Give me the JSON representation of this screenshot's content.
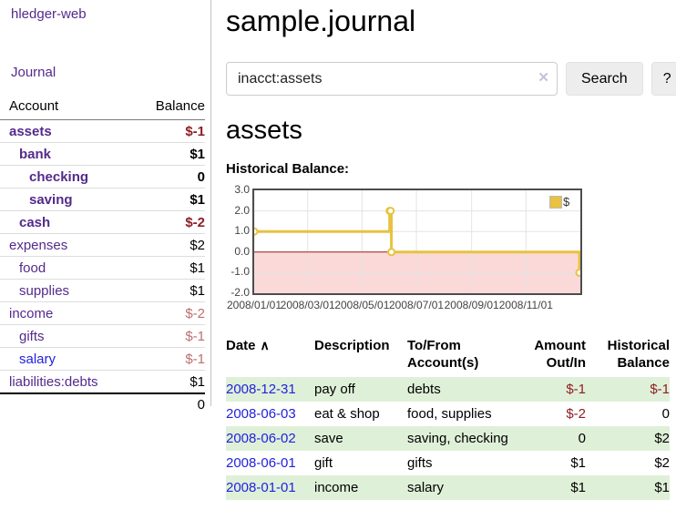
{
  "colors": {
    "link_purple": "#542a8c",
    "link_blue": "#2222dd",
    "negative_strong": "#8f1e24",
    "negative_soft": "#bd6f6f",
    "row_highlight_green": "#dff0d8",
    "chart_gold": "#e8c240",
    "chart_negative_fill": "#fbd9d9",
    "chart_zero_line": "#9b1c16"
  },
  "sidebar": {
    "brand": "hledger-web",
    "nav": {
      "journal": "Journal"
    },
    "accounts": {
      "header": {
        "account": "Account",
        "balance": "Balance"
      },
      "rows": [
        {
          "label": "assets",
          "indent": 0,
          "bold": true,
          "balance": "$-1"
        },
        {
          "label": "bank",
          "indent": 1,
          "bold": true,
          "balance": "$1"
        },
        {
          "label": "checking",
          "indent": 2,
          "bold": true,
          "balance": "0"
        },
        {
          "label": "saving",
          "indent": 2,
          "bold": true,
          "balance": "$1"
        },
        {
          "label": "cash",
          "indent": 1,
          "bold": true,
          "balance": "$-2"
        },
        {
          "label": "expenses",
          "indent": 0,
          "bold": false,
          "balance": "$2"
        },
        {
          "label": "food",
          "indent": 1,
          "bold": false,
          "balance": "$1"
        },
        {
          "label": "supplies",
          "indent": 1,
          "bold": false,
          "balance": "$1"
        },
        {
          "label": "income",
          "indent": 0,
          "bold": false,
          "balance": "$-2"
        },
        {
          "label": "gifts",
          "indent": 1,
          "bold": false,
          "balance": "$-1"
        },
        {
          "label": "salary",
          "indent": 1,
          "bold": false,
          "balance": "$-1",
          "link_color": "blue"
        },
        {
          "label": "liabilities:debts",
          "indent": 0,
          "bold": false,
          "balance": "$1"
        }
      ],
      "total": "0"
    }
  },
  "main": {
    "title": "sample.journal",
    "search": {
      "query": "inacct:assets",
      "clear_icon": "✕",
      "button": "Search",
      "help_button": "?"
    },
    "account_heading": "assets",
    "chart_label": "Historical Balance:",
    "register_table": {
      "sort_indicator": "∧",
      "headers": [
        "Date",
        "Description",
        "To/From Account(s)",
        "Amount Out/In",
        "Historical Balance"
      ],
      "rows": [
        {
          "date": "2008-12-31",
          "description": "pay off",
          "accounts": "debts",
          "amount": "$-1",
          "balance": "$-1"
        },
        {
          "date": "2008-06-03",
          "description": "eat & shop",
          "accounts": "food, supplies",
          "amount": "$-2",
          "balance": "0"
        },
        {
          "date": "2008-06-02",
          "description": "save",
          "accounts": "saving, checking",
          "amount": "0",
          "balance": "$2"
        },
        {
          "date": "2008-06-01",
          "description": "gift",
          "accounts": "gifts",
          "amount": "$1",
          "balance": "$2"
        },
        {
          "date": "2008-01-01",
          "description": "income",
          "accounts": "salary",
          "amount": "$1",
          "balance": "$1"
        }
      ]
    }
  },
  "chart_data": {
    "type": "line",
    "step": true,
    "title": "Historical Balance",
    "series": [
      {
        "name": "$",
        "color": "#e8c240",
        "points": [
          [
            "2008-01-01",
            1
          ],
          [
            "2008-06-01",
            2
          ],
          [
            "2008-06-02",
            2
          ],
          [
            "2008-06-03",
            0
          ],
          [
            "2008-12-31",
            -1
          ]
        ]
      }
    ],
    "ylim": [
      -2,
      3
    ],
    "y_ticks": [
      "3.0",
      "2.0",
      "1.0",
      "0.0",
      "-1.0",
      "-2.0"
    ],
    "x_ticks": [
      "2008/01/01",
      "2008/03/01",
      "2008/05/01",
      "2008/07/01",
      "2008/09/01",
      "2008/11/01"
    ],
    "x_range": [
      "2008/01/01",
      "2009/01/01"
    ],
    "grid": true,
    "legend_position": "top-right",
    "negative_region_color": "#fbd9d9",
    "zero_line_color": "#9b1c16"
  }
}
